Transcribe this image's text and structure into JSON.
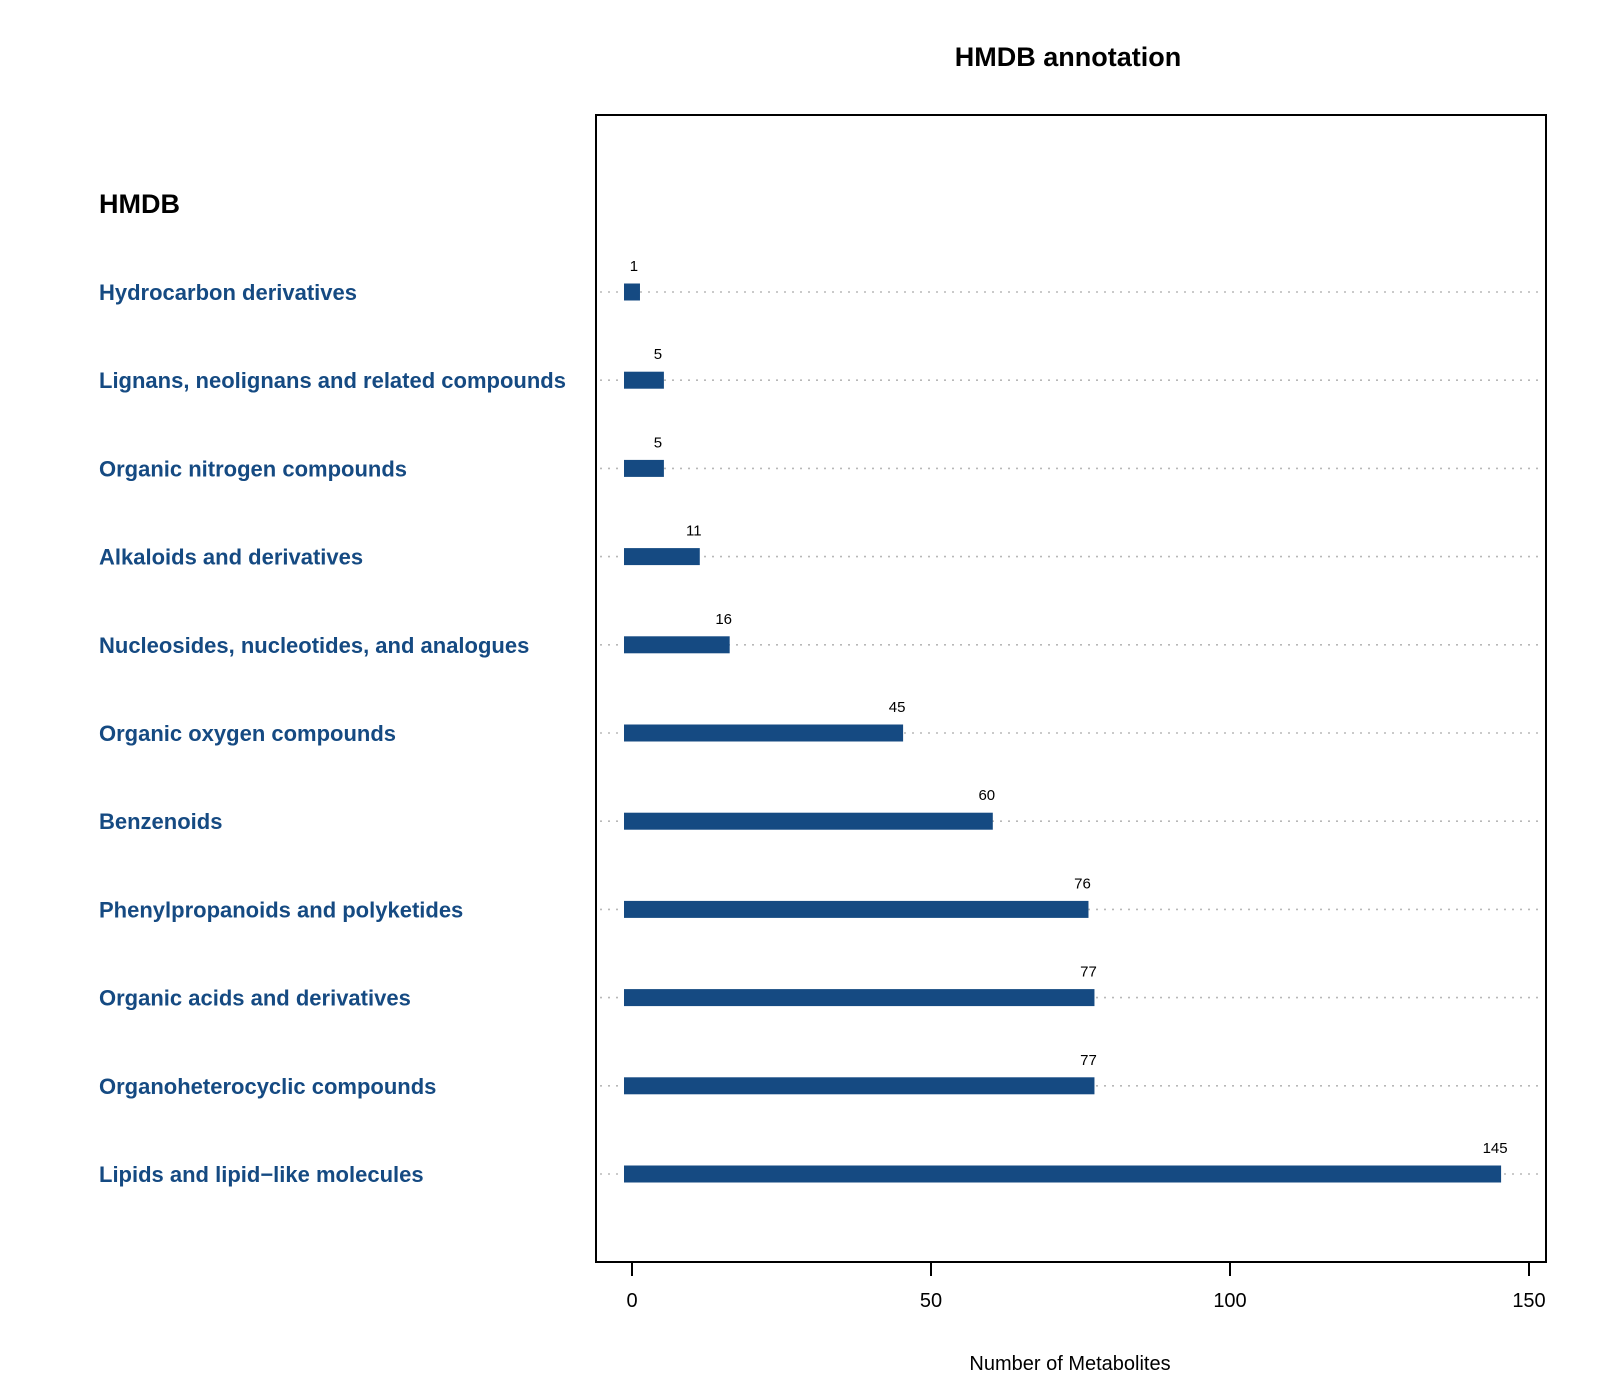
{
  "chart_data": {
    "type": "bar",
    "orientation": "horizontal",
    "title": "HMDB annotation",
    "group_heading": "HMDB",
    "xlabel": "Number of Metabolites",
    "ylabel": "",
    "xlim": [
      0,
      150
    ],
    "xticks": [
      0,
      50,
      100,
      150
    ],
    "grid": "dotted horizontal guide lines per category",
    "bar_color": "#154a82",
    "label_color": "#154a82",
    "categories": [
      "Hydrocarbon derivatives",
      "Lignans, neolignans and related compounds",
      "Organic nitrogen compounds",
      "Alkaloids and derivatives",
      "Nucleosides, nucleotides, and analogues",
      "Organic oxygen compounds",
      "Benzenoids",
      "Phenylpropanoids and polyketides",
      "Organic acids and derivatives",
      "Organoheterocyclic compounds",
      "Lipids and lipid−like molecules"
    ],
    "values": [
      1,
      5,
      5,
      11,
      16,
      45,
      60,
      76,
      77,
      77,
      145
    ]
  }
}
